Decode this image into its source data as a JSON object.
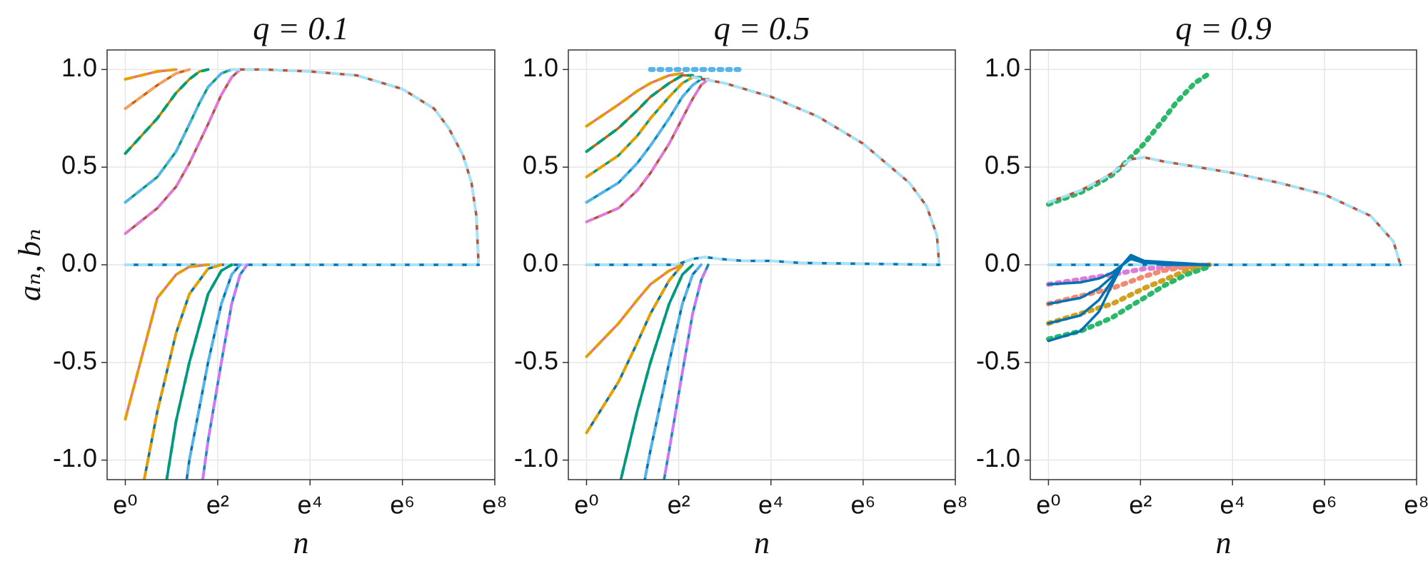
{
  "chart_data": [
    {
      "type": "line",
      "title": "q = 0.1",
      "x_label": "n",
      "y_label": "aₙ, bₙ",
      "xscale": "log",
      "grid": true,
      "xlim": [
        0.674,
        2980.958
      ],
      "ylim": [
        -1.1,
        1.1
      ],
      "xticks": [
        {
          "value": 1,
          "label": "e⁰"
        },
        {
          "value": 7.389,
          "label": "e²"
        },
        {
          "value": 54.598,
          "label": "e⁴"
        },
        {
          "value": 403.429,
          "label": "e⁶"
        },
        {
          "value": 2980.958,
          "label": "e⁸"
        }
      ],
      "yticks": [
        {
          "value": -1,
          "label": "-1.0"
        },
        -0.5,
        {
          "value": 0,
          "label": "0.0"
        },
        0.5,
        {
          "value": 1,
          "label": "1.0"
        }
      ],
      "series": [
        {
          "color": "#e8707a",
          "style": "solid",
          "overlay": "#e69f00",
          "x": [
            1,
            2,
            3
          ],
          "values": [
            0.95,
            0.99,
            1.0
          ]
        },
        {
          "color": "#d55e00",
          "style": "solid",
          "overlay": "#f0a060",
          "x": [
            1,
            2,
            3,
            4
          ],
          "values": [
            0.8,
            0.92,
            0.98,
            1.0
          ]
        },
        {
          "color": "#b08a00",
          "style": "solid",
          "overlay": "#009e73",
          "x": [
            1,
            2,
            3,
            4,
            5,
            6
          ],
          "values": [
            0.57,
            0.75,
            0.88,
            0.95,
            0.99,
            1.0
          ]
        },
        {
          "color": "#009e73",
          "style": "solid",
          "overlay": "#56b4e9",
          "x": [
            1,
            2,
            3,
            4,
            5,
            6,
            8,
            10
          ],
          "values": [
            0.32,
            0.45,
            0.58,
            0.72,
            0.83,
            0.91,
            0.98,
            1.0
          ]
        },
        {
          "color": "#b5523b",
          "style": "solid",
          "overlay": "#e07ad8",
          "x": [
            1,
            2,
            3,
            4,
            6,
            8,
            10,
            12
          ],
          "values": [
            0.16,
            0.29,
            0.4,
            0.52,
            0.72,
            0.87,
            0.96,
            1.0
          ]
        },
        {
          "color": "#b5523b",
          "style": "solid",
          "overlay": "#a8e2f5",
          "x": [
            10,
            20,
            55,
            150,
            403,
            800,
            1100,
            1500,
            1800,
            2000,
            2100
          ],
          "values": [
            1.0,
            1.0,
            0.99,
            0.97,
            0.9,
            0.8,
            0.7,
            0.56,
            0.42,
            0.25,
            0.0
          ]
        },
        {
          "color": "#0072b2",
          "style": "solid",
          "overlay": "#a8e2f5",
          "x": [
            1,
            10,
            100,
            1000,
            2100
          ],
          "values": [
            0,
            0,
            0,
            0,
            0
          ]
        },
        {
          "color": "#e8707a",
          "style": "solid",
          "overlay": "#e69f00",
          "x": [
            1,
            2,
            3,
            4,
            6
          ],
          "values": [
            -0.79,
            -0.17,
            -0.05,
            -0.01,
            0
          ]
        },
        {
          "color": "#0072b2",
          "style": "solid",
          "overlay": "#e69f00",
          "x": [
            1,
            2,
            3,
            4,
            6,
            8
          ],
          "values": [
            -1.6,
            -0.75,
            -0.35,
            -0.15,
            -0.02,
            0
          ]
        },
        {
          "color": "#008b9a",
          "style": "solid",
          "overlay": "#009e73",
          "x": [
            2,
            3,
            4,
            6,
            8,
            10
          ],
          "values": [
            -1.4,
            -0.8,
            -0.5,
            -0.15,
            -0.03,
            0
          ]
        },
        {
          "color": "#0072b2",
          "style": "solid",
          "overlay": "#56b4e9",
          "x": [
            3,
            4,
            6,
            8,
            10,
            12
          ],
          "values": [
            -1.5,
            -1.0,
            -0.5,
            -0.2,
            -0.05,
            0
          ]
        },
        {
          "color": "#0090b8",
          "style": "solid",
          "overlay": "#cc79f7",
          "x": [
            4,
            6,
            8,
            10,
            12,
            14
          ],
          "values": [
            -1.6,
            -0.9,
            -0.5,
            -0.2,
            -0.05,
            0
          ]
        }
      ]
    },
    {
      "type": "line",
      "title": "q = 0.5",
      "x_label": "n",
      "xscale": "log",
      "grid": true,
      "xlim": [
        0.674,
        2980.958
      ],
      "ylim": [
        -1.1,
        1.1
      ],
      "xticks": [
        {
          "value": 1,
          "label": "e⁰"
        },
        {
          "value": 7.389,
          "label": "e²"
        },
        {
          "value": 54.598,
          "label": "e⁴"
        },
        {
          "value": 403.429,
          "label": "e⁶"
        },
        {
          "value": 2980.958,
          "label": "e⁸"
        }
      ],
      "yticks": [
        {
          "value": -1,
          "label": "-1.0"
        },
        -0.5,
        {
          "value": 0,
          "label": "0.0"
        },
        0.5,
        {
          "value": 1,
          "label": "1.0"
        }
      ],
      "series": [
        {
          "color": "#56b4e9",
          "style": "dotted",
          "x": [
            4,
            30
          ],
          "values": [
            1.0,
            1.0
          ]
        },
        {
          "color": "#e8707a",
          "style": "solid",
          "overlay": "#e69f00",
          "x": [
            1,
            2,
            3,
            4,
            6,
            8
          ],
          "values": [
            0.71,
            0.82,
            0.89,
            0.93,
            0.97,
            0.98
          ]
        },
        {
          "color": "#d55e00",
          "style": "solid",
          "overlay": "#009e73",
          "x": [
            1,
            2,
            3,
            4,
            6,
            8,
            10
          ],
          "values": [
            0.58,
            0.7,
            0.79,
            0.86,
            0.93,
            0.97,
            0.97
          ]
        },
        {
          "color": "#009e73",
          "style": "solid",
          "overlay": "#e69f00",
          "x": [
            1,
            2,
            3,
            4,
            6,
            8,
            10,
            12
          ],
          "values": [
            0.45,
            0.56,
            0.66,
            0.75,
            0.86,
            0.93,
            0.96,
            0.96
          ]
        },
        {
          "color": "#0090b8",
          "style": "solid",
          "overlay": "#56b4e9",
          "x": [
            1,
            2,
            3,
            4,
            6,
            8,
            10,
            12,
            14
          ],
          "values": [
            0.32,
            0.42,
            0.52,
            0.61,
            0.75,
            0.86,
            0.92,
            0.95,
            0.95
          ]
        },
        {
          "color": "#b5523b",
          "style": "solid",
          "overlay": "#e07ad8",
          "x": [
            1,
            2,
            3,
            4,
            6,
            8,
            10,
            12,
            14
          ],
          "values": [
            0.22,
            0.29,
            0.38,
            0.47,
            0.62,
            0.75,
            0.85,
            0.92,
            0.95
          ]
        },
        {
          "color": "#b5523b",
          "style": "solid",
          "overlay": "#a8e2f5",
          "x": [
            10,
            20,
            55,
            150,
            403,
            1100,
            1600,
            2000,
            2100
          ],
          "values": [
            0.96,
            0.93,
            0.86,
            0.76,
            0.62,
            0.42,
            0.3,
            0.15,
            0.0
          ]
        },
        {
          "color": "#0072b2",
          "style": "solid",
          "overlay": "#a8e2f5",
          "x": [
            1,
            7,
            10,
            13,
            18,
            30,
            55,
            100,
            2100
          ],
          "values": [
            0,
            0,
            0.03,
            0.04,
            0.03,
            0.02,
            0.02,
            0.01,
            0
          ]
        },
        {
          "color": "#e8707a",
          "style": "solid",
          "overlay": "#e69f00",
          "x": [
            1,
            2,
            3,
            4,
            6,
            8
          ],
          "values": [
            -0.47,
            -0.3,
            -0.18,
            -0.1,
            -0.03,
            0
          ]
        },
        {
          "color": "#0072b2",
          "style": "solid",
          "overlay": "#e69f00",
          "x": [
            1,
            2,
            3,
            4,
            6,
            8
          ],
          "values": [
            -0.86,
            -0.6,
            -0.4,
            -0.25,
            -0.08,
            0
          ]
        },
        {
          "color": "#008b9a",
          "style": "solid",
          "overlay": "#009e73",
          "x": [
            2,
            3,
            4,
            6,
            8,
            10
          ],
          "values": [
            -1.15,
            -0.75,
            -0.5,
            -0.2,
            -0.05,
            0
          ]
        },
        {
          "color": "#0072b2",
          "style": "solid",
          "overlay": "#56b4e9",
          "x": [
            3,
            4,
            6,
            8,
            10,
            12
          ],
          "values": [
            -1.3,
            -0.95,
            -0.5,
            -0.2,
            -0.05,
            0
          ]
        },
        {
          "color": "#0090b8",
          "style": "solid",
          "overlay": "#cc79f7",
          "x": [
            4,
            6,
            8,
            10,
            12,
            14
          ],
          "values": [
            -1.5,
            -0.95,
            -0.55,
            -0.25,
            -0.08,
            0
          ]
        }
      ]
    },
    {
      "type": "line",
      "title": "q = 0.9",
      "x_label": "n",
      "xscale": "log",
      "grid": true,
      "xlim": [
        0.674,
        2980.958
      ],
      "ylim": [
        -1.1,
        1.1
      ],
      "xticks": [
        {
          "value": 1,
          "label": "e⁰"
        },
        {
          "value": 7.389,
          "label": "e²"
        },
        {
          "value": 54.598,
          "label": "e⁴"
        },
        {
          "value": 403.429,
          "label": "e⁶"
        },
        {
          "value": 2980.958,
          "label": "e⁸"
        }
      ],
      "yticks": [
        {
          "value": -1,
          "label": "-1.0"
        },
        -0.5,
        {
          "value": 0,
          "label": "0.0"
        },
        0.5,
        {
          "value": 1,
          "label": "1.0"
        }
      ],
      "series": [
        {
          "color": "#2cb86a",
          "style": "dotted",
          "x": [
            1,
            2,
            3,
            4,
            6,
            8,
            12,
            16,
            24,
            33
          ],
          "values": [
            0.31,
            0.37,
            0.42,
            0.46,
            0.55,
            0.62,
            0.74,
            0.83,
            0.93,
            0.98
          ]
        },
        {
          "color": "#b5523b",
          "style": "solid",
          "overlay": "#a8e2f5",
          "x": [
            1,
            2,
            3,
            4,
            5,
            6,
            8,
            12,
            20,
            55,
            150,
            403,
            1100,
            1800,
            2100
          ],
          "values": [
            0.32,
            0.38,
            0.43,
            0.47,
            0.51,
            0.54,
            0.55,
            0.53,
            0.51,
            0.47,
            0.42,
            0.36,
            0.25,
            0.12,
            0.0
          ]
        },
        {
          "color": "#0072b2",
          "style": "solid",
          "overlay": "#a8e2f5",
          "x": [
            1,
            2100
          ],
          "values": [
            0,
            0
          ]
        },
        {
          "color": "#e07ad8",
          "style": "dotted",
          "x": [
            1,
            4,
            8,
            33
          ],
          "values": [
            -0.1,
            -0.05,
            -0.02,
            0
          ]
        },
        {
          "color": "#f08a70",
          "style": "dotted",
          "x": [
            1,
            4,
            8,
            12,
            20,
            33
          ],
          "values": [
            -0.2,
            -0.12,
            -0.06,
            -0.03,
            -0.01,
            0
          ]
        },
        {
          "color": "#d0a020",
          "style": "dotted",
          "x": [
            1,
            4,
            8,
            12,
            20,
            33
          ],
          "values": [
            -0.3,
            -0.2,
            -0.12,
            -0.08,
            -0.03,
            0
          ]
        },
        {
          "color": "#2cb86a",
          "style": "dotted",
          "x": [
            1,
            2,
            3,
            4,
            6,
            8,
            12,
            20,
            33
          ],
          "values": [
            -0.38,
            -0.34,
            -0.3,
            -0.27,
            -0.21,
            -0.17,
            -0.11,
            -0.05,
            -0.01
          ]
        },
        {
          "color": "#0072b2",
          "style": "solid",
          "x": [
            1,
            2,
            3,
            4,
            5,
            6,
            8,
            12,
            20,
            33
          ],
          "values": [
            -0.1,
            -0.09,
            -0.07,
            -0.04,
            0.0,
            0.04,
            0.02,
            0.0,
            0,
            0
          ]
        },
        {
          "color": "#0072b2",
          "style": "solid",
          "x": [
            1,
            2,
            3,
            4,
            5,
            6,
            8,
            33
          ],
          "values": [
            -0.2,
            -0.17,
            -0.12,
            -0.06,
            0.0,
            0.05,
            0.02,
            0
          ]
        },
        {
          "color": "#0072b2",
          "style": "solid",
          "x": [
            1,
            2,
            3,
            4,
            5,
            6,
            8,
            33
          ],
          "values": [
            -0.3,
            -0.26,
            -0.18,
            -0.08,
            0.0,
            0.04,
            0.01,
            0
          ]
        },
        {
          "color": "#0072b2",
          "style": "solid",
          "x": [
            1,
            2,
            3,
            4,
            5,
            6,
            8,
            33
          ],
          "values": [
            -0.39,
            -0.34,
            -0.24,
            -0.1,
            0.0,
            0.03,
            0.01,
            0
          ]
        }
      ]
    }
  ]
}
